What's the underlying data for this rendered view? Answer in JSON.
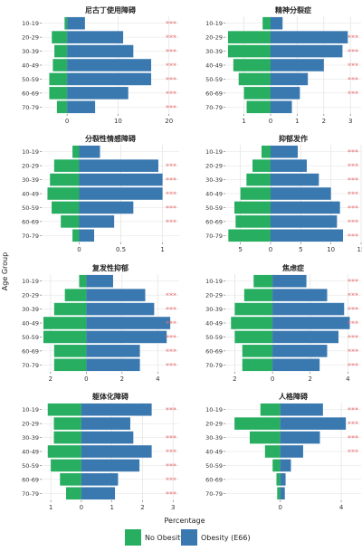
{
  "colors": {
    "no_obesity": "#27ae60",
    "obesity": "#3a78b0",
    "sig": "#e57373",
    "grid": "#e6e6e6",
    "panel_bg": "#ffffff"
  },
  "legend": {
    "no_obesity": "No Obesity",
    "obesity": "Obesity (E66)"
  },
  "xlabel": "Percentage",
  "ylabel": "Age Group",
  "chart_data": [
    {
      "type": "bar",
      "orientation": "population-pyramid",
      "title": "尼古丁使用障碍",
      "categories": [
        "10-19",
        "20-29",
        "30-39",
        "40-49",
        "50-59",
        "60-69",
        "70-79"
      ],
      "series": [
        {
          "name": "No Obesity",
          "values": [
            0.5,
            3.0,
            2.5,
            2.8,
            3.5,
            3.5,
            2.0
          ]
        },
        {
          "name": "Obesity (E66)",
          "values": [
            3.5,
            11.0,
            13.0,
            16.5,
            16.5,
            12.0,
            5.5
          ]
        }
      ],
      "significance": [
        "***",
        "***",
        "***",
        "***",
        "***",
        "***",
        "***"
      ],
      "xlim": [
        -5,
        22
      ],
      "xticks": [
        {
          "v": 0,
          "label": "0"
        },
        {
          "v": 10,
          "label": "10"
        },
        {
          "v": 20,
          "label": "20"
        }
      ]
    },
    {
      "type": "bar",
      "orientation": "population-pyramid",
      "title": "精神分裂症",
      "categories": [
        "10-19",
        "20-29",
        "30-39",
        "40-49",
        "50-59",
        "60-69",
        "70-79"
      ],
      "series": [
        {
          "name": "No Obesity",
          "values": [
            0.3,
            1.6,
            1.6,
            1.4,
            1.2,
            1.0,
            0.9
          ]
        },
        {
          "name": "Obesity (E66)",
          "values": [
            0.45,
            2.9,
            2.7,
            2.0,
            1.4,
            1.1,
            0.8
          ]
        }
      ],
      "significance": [
        "",
        "***",
        "***",
        "***",
        "***",
        "***",
        ""
      ],
      "xlim": [
        -1.7,
        3.4
      ],
      "xticks": [
        {
          "v": -1,
          "label": "1"
        },
        {
          "v": 0,
          "label": "0"
        },
        {
          "v": 1,
          "label": "1"
        },
        {
          "v": 2,
          "label": "2"
        },
        {
          "v": 3,
          "label": "3"
        }
      ]
    },
    {
      "type": "bar",
      "orientation": "population-pyramid",
      "title": "分裂性情感障碍",
      "categories": [
        "10-19",
        "20-29",
        "30-39",
        "40-49",
        "50-59",
        "60-69",
        "70-79"
      ],
      "series": [
        {
          "name": "No Obesity",
          "values": [
            0.08,
            0.3,
            0.35,
            0.38,
            0.33,
            0.22,
            0.08
          ]
        },
        {
          "name": "Obesity (E66)",
          "values": [
            0.25,
            0.95,
            1.0,
            1.0,
            0.65,
            0.42,
            0.18
          ]
        }
      ],
      "significance": [
        "",
        "***",
        "***",
        "***",
        "***",
        "***",
        ""
      ],
      "xlim": [
        -0.45,
        1.2
      ],
      "xticks": [
        {
          "v": 0,
          "label": "0"
        },
        {
          "v": 0.5,
          "label": "0.5"
        },
        {
          "v": 1,
          "label": "1"
        }
      ]
    },
    {
      "type": "bar",
      "orientation": "population-pyramid",
      "title": "抑郁发作",
      "categories": [
        "10-19",
        "20-29",
        "30-39",
        "40-49",
        "50-59",
        "60-69",
        "70-79"
      ],
      "series": [
        {
          "name": "No Obesity",
          "values": [
            1.5,
            3.0,
            4.0,
            5.0,
            6.0,
            5.8,
            7.0
          ]
        },
        {
          "name": "Obesity (E66)",
          "values": [
            4.5,
            6.0,
            8.0,
            10.0,
            11.5,
            11.0,
            12.0
          ]
        }
      ],
      "significance": [
        "***",
        "***",
        "***",
        "***",
        "***",
        "***",
        "***"
      ],
      "xlim": [
        -7.5,
        15
      ],
      "xticks": [
        {
          "v": -5,
          "label": "5"
        },
        {
          "v": 0,
          "label": "0"
        },
        {
          "v": 5,
          "label": "5"
        },
        {
          "v": 10,
          "label": "10"
        },
        {
          "v": 15,
          "label": "15"
        }
      ]
    },
    {
      "type": "bar",
      "orientation": "population-pyramid",
      "title": "复发性抑郁",
      "categories": [
        "10-19",
        "20-29",
        "30-39",
        "40-49",
        "50-59",
        "60-69",
        "70-79"
      ],
      "series": [
        {
          "name": "No Obesity",
          "values": [
            0.4,
            1.2,
            1.8,
            2.4,
            2.4,
            1.8,
            1.8
          ]
        },
        {
          "name": "Obesity (E66)",
          "values": [
            1.5,
            3.3,
            3.8,
            4.7,
            4.5,
            3.0,
            3.0
          ]
        }
      ],
      "significance": [
        "",
        "***",
        "***",
        "***",
        "***",
        "***",
        "***"
      ],
      "xlim": [
        -2.5,
        5.2
      ],
      "xticks": [
        {
          "v": -2,
          "label": "2"
        },
        {
          "v": 0,
          "label": "0"
        },
        {
          "v": 2,
          "label": "2"
        },
        {
          "v": 4,
          "label": "4"
        }
      ]
    },
    {
      "type": "bar",
      "orientation": "population-pyramid",
      "title": "焦虑症",
      "categories": [
        "10-19",
        "20-29",
        "30-39",
        "40-49",
        "50-59",
        "60-69",
        "70-79"
      ],
      "series": [
        {
          "name": "No Obesity",
          "values": [
            1.0,
            1.5,
            2.0,
            2.2,
            2.0,
            1.6,
            1.6
          ]
        },
        {
          "name": "Obesity (E66)",
          "values": [
            1.8,
            2.9,
            3.8,
            4.1,
            3.5,
            2.9,
            2.5
          ]
        }
      ],
      "significance": [
        "***",
        "***",
        "***",
        "***",
        "***",
        "***",
        "***"
      ],
      "xlim": [
        -2.5,
        4.7
      ],
      "xticks": [
        {
          "v": -2,
          "label": "2"
        },
        {
          "v": 0,
          "label": "0"
        },
        {
          "v": 2,
          "label": "2"
        },
        {
          "v": 4,
          "label": "4"
        }
      ]
    },
    {
      "type": "bar",
      "orientation": "population-pyramid",
      "title": "躯体化障碍",
      "categories": [
        "10-19",
        "20-29",
        "30-39",
        "40-49",
        "50-59",
        "60-69",
        "70-79"
      ],
      "series": [
        {
          "name": "No Obesity",
          "values": [
            1.1,
            0.9,
            0.9,
            1.1,
            1.0,
            0.7,
            0.5
          ]
        },
        {
          "name": "Obesity (E66)",
          "values": [
            2.3,
            1.6,
            1.7,
            2.3,
            1.9,
            1.2,
            1.1
          ]
        }
      ],
      "significance": [
        "***",
        "",
        "***",
        "***",
        "***",
        "***",
        "***"
      ],
      "xlim": [
        -1.3,
        3.2
      ],
      "xticks": [
        {
          "v": -1,
          "label": "1"
        },
        {
          "v": 0,
          "label": "0"
        },
        {
          "v": 1,
          "label": "1"
        },
        {
          "v": 2,
          "label": "2"
        },
        {
          "v": 3,
          "label": "3"
        }
      ]
    },
    {
      "type": "bar",
      "orientation": "population-pyramid",
      "title": "人格障碍",
      "categories": [
        "10-19",
        "20-29",
        "30-39",
        "40-49",
        "50-59",
        "60-69",
        "70-79"
      ],
      "series": [
        {
          "name": "No Obesity",
          "values": [
            1.3,
            3.0,
            2.0,
            1.0,
            0.5,
            0.25,
            0.2
          ]
        },
        {
          "name": "Obesity (E66)",
          "values": [
            2.8,
            4.3,
            2.6,
            1.5,
            0.7,
            0.35,
            0.3
          ]
        }
      ],
      "significance": [
        "***",
        "***",
        "***",
        "***",
        "",
        "",
        ""
      ],
      "xlim": [
        -3.6,
        5.3
      ],
      "xticks": [
        {
          "v": 0,
          "label": "0"
        },
        {
          "v": 4,
          "label": "4"
        }
      ]
    }
  ]
}
